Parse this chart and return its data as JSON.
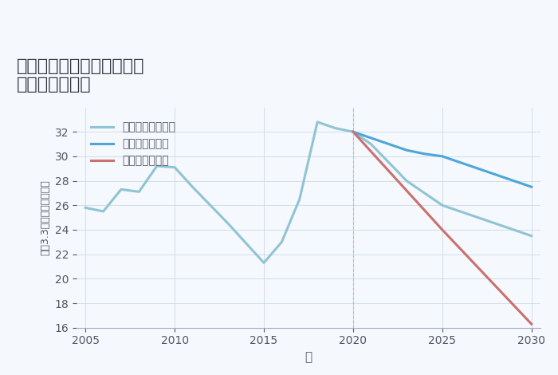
{
  "title": "兵庫県加古郡稲美町中村の\n土地の価格推移",
  "xlabel": "年",
  "ylabel": "坪（3.3㎡）単価（万円）",
  "background_color": "#f5f8fc",
  "plot_bg_color": "#f5f8fc",
  "ylim": [
    16,
    34
  ],
  "yticks": [
    16,
    18,
    20,
    22,
    24,
    26,
    28,
    30,
    32
  ],
  "xlim": [
    2004.5,
    2030.5
  ],
  "xticks": [
    2005,
    2010,
    2015,
    2020,
    2025,
    2030
  ],
  "good_scenario": {
    "label": "グッドシナリオ",
    "color": "#4da6d9",
    "x": [
      2020,
      2021,
      2022,
      2023,
      2024,
      2025,
      2026,
      2027,
      2028,
      2029,
      2030
    ],
    "y": [
      32.0,
      31.5,
      31.0,
      30.5,
      30.2,
      30.0,
      29.5,
      29.0,
      28.5,
      28.0,
      27.5
    ]
  },
  "bad_scenario": {
    "label": "バッドシナリオ",
    "color": "#c97070",
    "x": [
      2020,
      2025,
      2030
    ],
    "y": [
      32.0,
      24.0,
      16.3
    ]
  },
  "normal_scenario": {
    "label": "ノーマルシナリオ",
    "color": "#90c4d4",
    "x": [
      2005,
      2006,
      2007,
      2008,
      2009,
      2010,
      2011,
      2012,
      2013,
      2014,
      2015,
      2016,
      2017,
      2018,
      2019,
      2020,
      2021,
      2022,
      2023,
      2024,
      2025,
      2026,
      2027,
      2028,
      2029,
      2030
    ],
    "y": [
      25.8,
      25.5,
      27.3,
      27.1,
      29.2,
      29.1,
      27.5,
      26.0,
      24.5,
      22.9,
      21.3,
      23.0,
      26.5,
      32.8,
      32.3,
      32.0,
      31.0,
      29.5,
      28.0,
      27.0,
      26.0,
      25.5,
      25.0,
      24.5,
      24.0,
      23.5
    ]
  }
}
